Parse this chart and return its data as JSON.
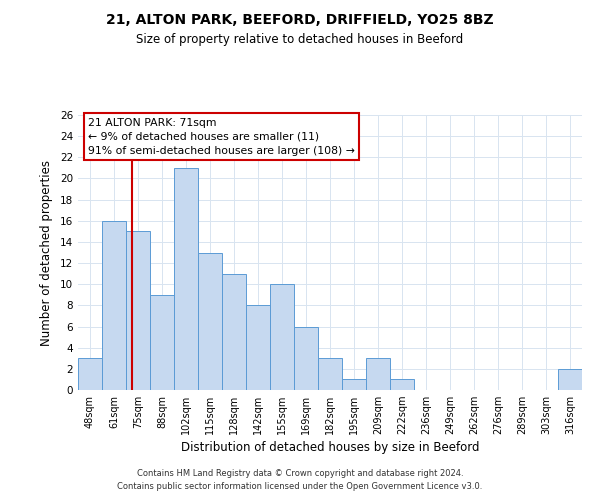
{
  "title1": "21, ALTON PARK, BEEFORD, DRIFFIELD, YO25 8BZ",
  "title2": "Size of property relative to detached houses in Beeford",
  "xlabel": "Distribution of detached houses by size in Beeford",
  "ylabel": "Number of detached properties",
  "categories": [
    "48sqm",
    "61sqm",
    "75sqm",
    "88sqm",
    "102sqm",
    "115sqm",
    "128sqm",
    "142sqm",
    "155sqm",
    "169sqm",
    "182sqm",
    "195sqm",
    "209sqm",
    "222sqm",
    "236sqm",
    "249sqm",
    "262sqm",
    "276sqm",
    "289sqm",
    "303sqm",
    "316sqm"
  ],
  "values": [
    3,
    16,
    15,
    9,
    21,
    13,
    11,
    8,
    10,
    6,
    3,
    1,
    3,
    1,
    0,
    0,
    0,
    0,
    0,
    0,
    2
  ],
  "bar_color": "#c6d9f0",
  "bar_edge_color": "#5b9bd5",
  "red_line_x": 1.77,
  "ylim": [
    0,
    26
  ],
  "yticks": [
    0,
    2,
    4,
    6,
    8,
    10,
    12,
    14,
    16,
    18,
    20,
    22,
    24,
    26
  ],
  "annotation_title": "21 ALTON PARK: 71sqm",
  "annotation_line1": "← 9% of detached houses are smaller (11)",
  "annotation_line2": "91% of semi-detached houses are larger (108) →",
  "annotation_box_color": "#ffffff",
  "annotation_box_edge": "#cc0000",
  "footer1": "Contains HM Land Registry data © Crown copyright and database right 2024.",
  "footer2": "Contains public sector information licensed under the Open Government Licence v3.0.",
  "background_color": "#ffffff",
  "grid_color": "#d8e4f0"
}
